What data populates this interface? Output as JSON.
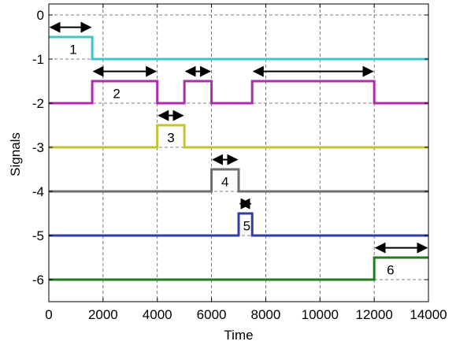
{
  "chart_data": {
    "type": "line",
    "xlabel": "Time",
    "ylabel": "Signals",
    "xlim": [
      0,
      14000
    ],
    "ylim": [
      -6.5,
      0.25
    ],
    "xticks": [
      0,
      2000,
      4000,
      6000,
      8000,
      10000,
      12000,
      14000
    ],
    "xtick_labels": [
      "0",
      "2000",
      "4000",
      "6000",
      "8000",
      "10000",
      "12000",
      "14000"
    ],
    "yticks": [
      0,
      -1,
      -2,
      -3,
      -4,
      -5,
      -6
    ],
    "ytick_labels": [
      "0",
      "-1",
      "-2",
      "-3",
      "-4",
      "-5",
      "-6"
    ],
    "grid": true,
    "grid_style": "dashed",
    "series": [
      {
        "label": "1",
        "color": "#3cc6c6",
        "x": [
          0,
          1600,
          1600,
          14000
        ],
        "y": [
          -0.5,
          -0.5,
          -1,
          -1
        ],
        "arrows": [
          [
            0,
            1600,
            -0.28
          ]
        ],
        "label_pos": [
          900,
          -0.78
        ]
      },
      {
        "label": "2",
        "color": "#b02cae",
        "x": [
          0,
          1600,
          1600,
          4000,
          4000,
          5000,
          5000,
          6000,
          6000,
          7500,
          7500,
          12000,
          12000,
          14000
        ],
        "y": [
          -2,
          -2,
          -1.5,
          -1.5,
          -2,
          -2,
          -1.5,
          -1.5,
          -2,
          -2,
          -1.5,
          -1.5,
          -2,
          -2
        ],
        "arrows": [
          [
            1600,
            4000,
            -1.28
          ],
          [
            5000,
            6000,
            -1.28
          ],
          [
            7500,
            12000,
            -1.28
          ]
        ],
        "label_pos": [
          2500,
          -1.78
        ]
      },
      {
        "label": "3",
        "color": "#c5c52a",
        "x": [
          0,
          4000,
          4000,
          5000,
          5000,
          14000
        ],
        "y": [
          -3,
          -3,
          -2.5,
          -2.5,
          -3,
          -3
        ],
        "arrows": [
          [
            4000,
            5000,
            -2.28
          ]
        ],
        "label_pos": [
          4500,
          -2.78
        ]
      },
      {
        "label": "4",
        "color": "#6e6e6e",
        "x": [
          0,
          6000,
          6000,
          7000,
          7000,
          14000
        ],
        "y": [
          -4,
          -4,
          -3.5,
          -3.5,
          -4,
          -4
        ],
        "arrows": [
          [
            6000,
            7000,
            -3.28
          ]
        ],
        "label_pos": [
          6500,
          -3.78
        ]
      },
      {
        "label": "5",
        "color": "#2d3ea8",
        "x": [
          0,
          7000,
          7000,
          7500,
          7500,
          14000
        ],
        "y": [
          -5,
          -5,
          -4.5,
          -4.5,
          -5,
          -5
        ],
        "arrows": [
          [
            7000,
            7500,
            -4.28
          ]
        ],
        "label_pos": [
          7300,
          -4.78
        ]
      },
      {
        "label": "6",
        "color": "#1e7e1e",
        "x": [
          0,
          12000,
          12000,
          14000
        ],
        "y": [
          -6,
          -6,
          -5.5,
          -5.5
        ],
        "arrows": [
          [
            12000,
            14000,
            -5.28
          ]
        ],
        "label_pos": [
          12600,
          -5.78
        ]
      }
    ]
  }
}
